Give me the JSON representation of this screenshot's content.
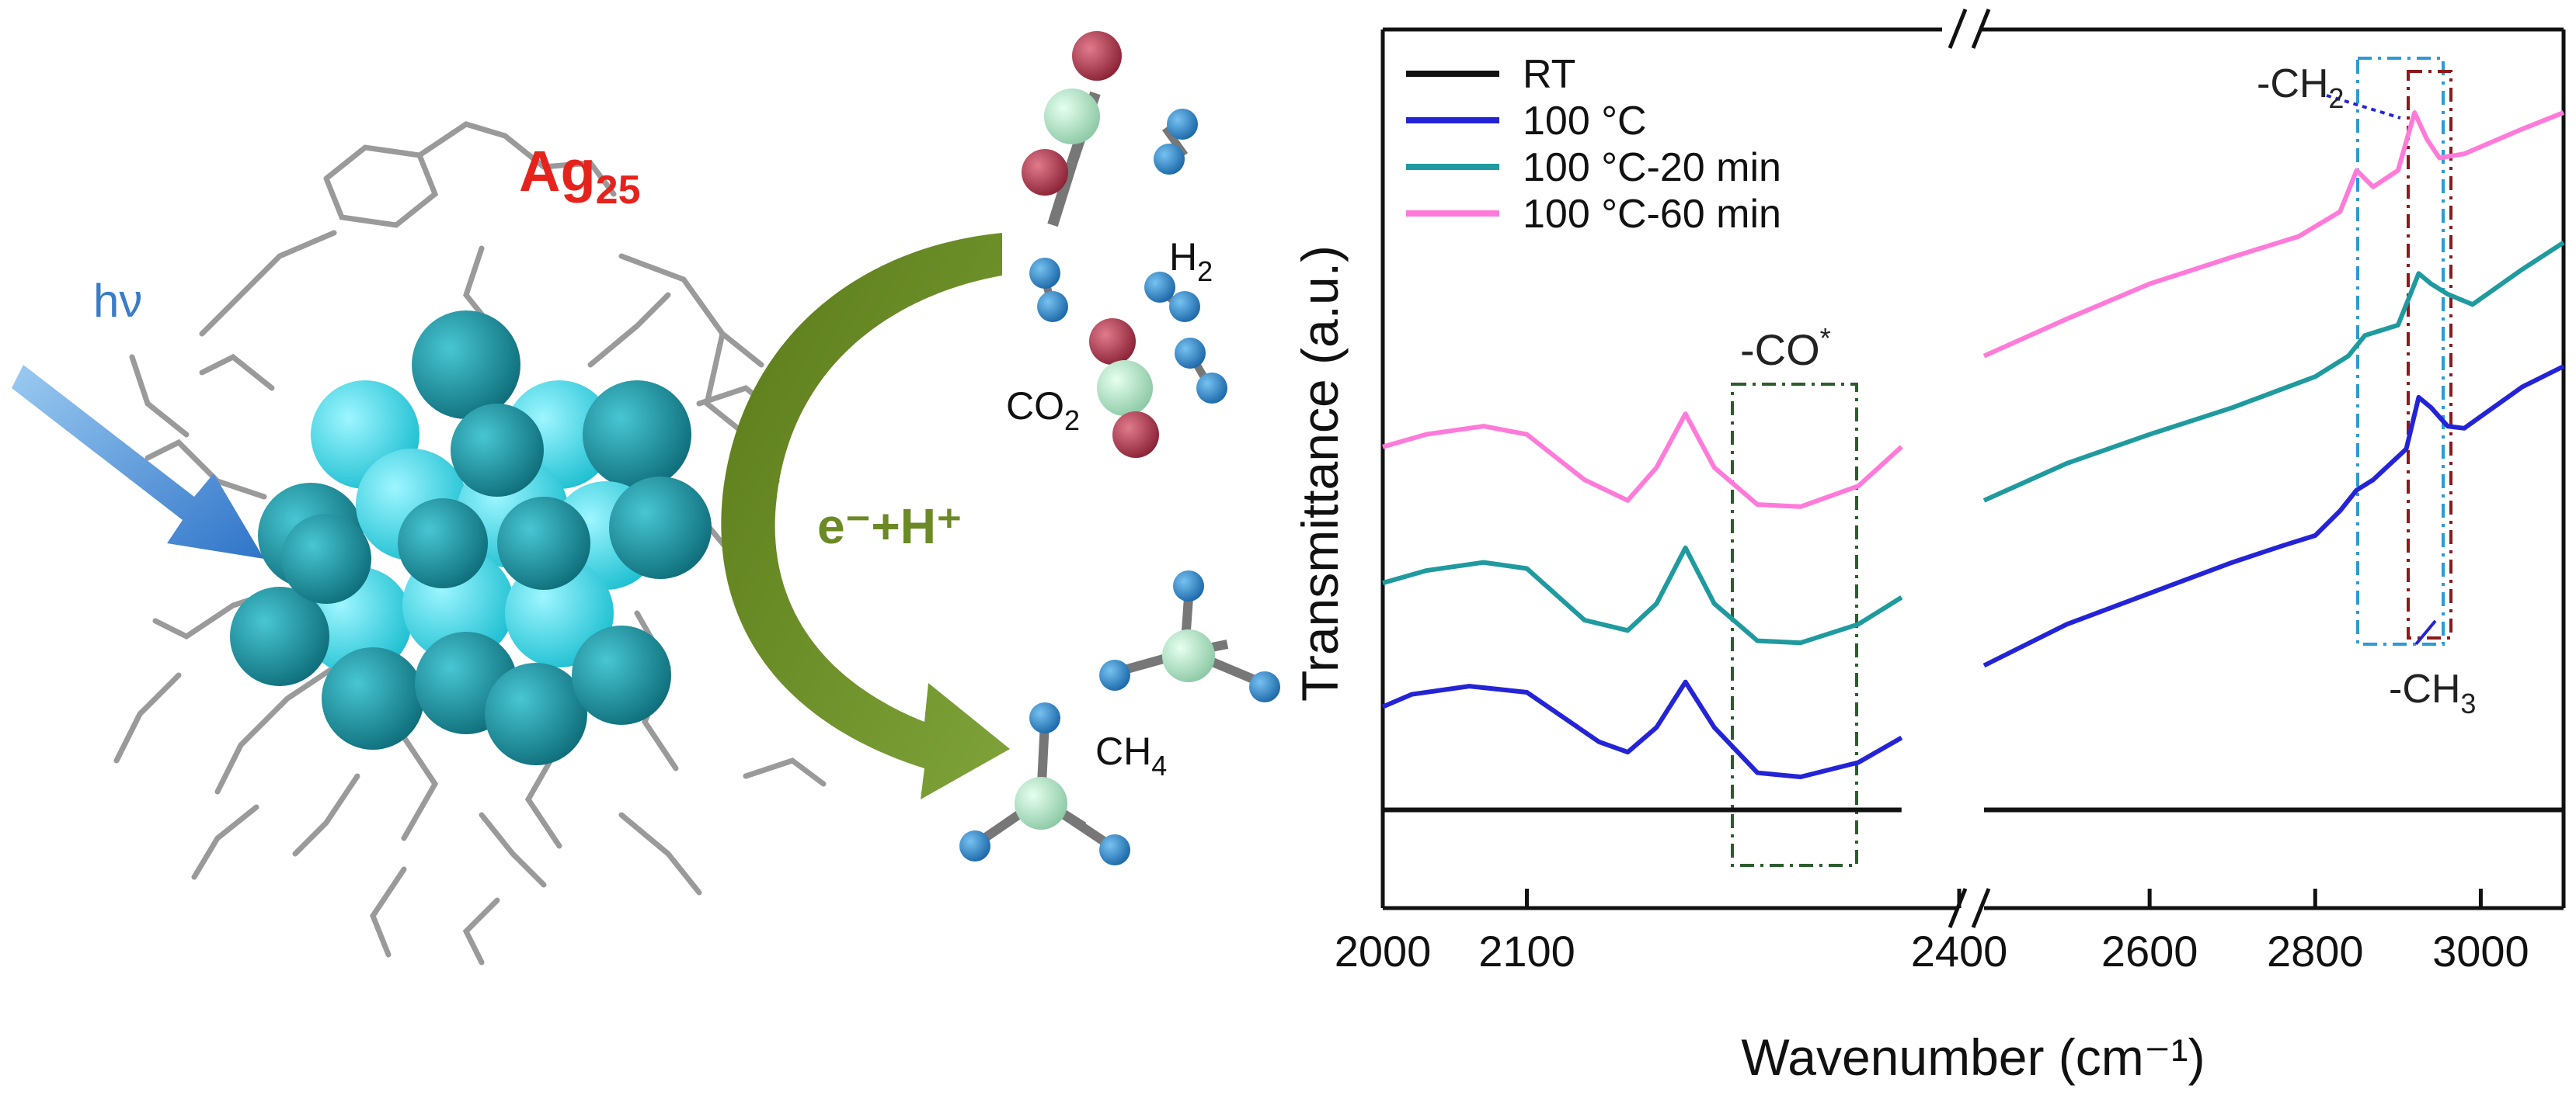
{
  "scheme": {
    "cluster_label": "Ag",
    "cluster_label_sub": "25",
    "light_label": "hν",
    "reaction_label": "e⁻+H⁺",
    "molecule_labels": [
      {
        "text": "H",
        "sub": "2"
      },
      {
        "text": "CO",
        "sub": "2"
      },
      {
        "text": "CH",
        "sub": "4"
      }
    ],
    "colors": {
      "ag_atom": "#2aa7b6",
      "ag_atom_light": "#42e0ef",
      "ligand": "#9a9a9a",
      "arrow_green": "#6b8a25",
      "light_arrow": "#3f8fd6",
      "cluster_label": "#e5231c",
      "oxygen": "#b8465a",
      "carbon": "#b7e4c7",
      "hydrogen": "#2f8fcf"
    },
    "icons": [
      "silver-cluster-icon",
      "light-arrow-icon",
      "co2-molecule-icon",
      "h2-molecule-icon",
      "ch4-molecule-icon",
      "curved-arrow-icon"
    ]
  },
  "chart_data": {
    "type": "line",
    "xlabel": "Wavenumber (cm⁻¹)",
    "ylabel": "Transmittance (a.u.)",
    "x_axis_break": [
      2400,
      2400
    ],
    "left_panel": {
      "xlim": [
        2000,
        2400
      ],
      "ticks": [
        2000,
        2100,
        2400
      ],
      "tick_labels": [
        "2000",
        "2100",
        "2400"
      ]
    },
    "right_panel": {
      "xlim": [
        2400,
        3100
      ],
      "ticks": [
        2600,
        2800,
        3000
      ],
      "tick_labels": [
        "2600",
        "2800",
        "3000"
      ]
    },
    "series": [
      {
        "name": "RT",
        "color": "#111111",
        "left_points": [
          [
            2000,
            0.0
          ],
          [
            2050,
            0.0
          ],
          [
            2100,
            0.0
          ],
          [
            2150,
            0.0
          ],
          [
            2200,
            0.0
          ],
          [
            2250,
            0.0
          ],
          [
            2300,
            0.0
          ],
          [
            2360,
            0.0
          ]
        ],
        "right_points": [
          [
            2400,
            0.0
          ],
          [
            2500,
            0.0
          ],
          [
            2600,
            0.0
          ],
          [
            2700,
            0.0
          ],
          [
            2800,
            0.0
          ],
          [
            2900,
            0.0
          ],
          [
            3000,
            0.0
          ],
          [
            3100,
            0.0
          ]
        ]
      },
      {
        "name": "100 °C",
        "color": "#2424d6",
        "left_points": [
          [
            2000,
            0.5
          ],
          [
            2020,
            0.56
          ],
          [
            2060,
            0.6
          ],
          [
            2100,
            0.57
          ],
          [
            2150,
            0.33
          ],
          [
            2170,
            0.28
          ],
          [
            2190,
            0.4
          ],
          [
            2210,
            0.62
          ],
          [
            2230,
            0.4
          ],
          [
            2260,
            0.18
          ],
          [
            2290,
            0.16
          ],
          [
            2330,
            0.23
          ],
          [
            2360,
            0.35
          ]
        ],
        "right_points": [
          [
            2400,
            0.7
          ],
          [
            2500,
            0.9
          ],
          [
            2600,
            1.05
          ],
          [
            2700,
            1.2
          ],
          [
            2760,
            1.28
          ],
          [
            2800,
            1.33
          ],
          [
            2830,
            1.45
          ],
          [
            2850,
            1.55
          ],
          [
            2870,
            1.6
          ],
          [
            2910,
            1.75
          ],
          [
            2925,
            2.0
          ],
          [
            2940,
            1.95
          ],
          [
            2960,
            1.86
          ],
          [
            2980,
            1.85
          ],
          [
            3050,
            2.05
          ],
          [
            3100,
            2.15
          ]
        ]
      },
      {
        "name": "100 °C-20 min",
        "color": "#1f9a9f",
        "left_points": [
          [
            2000,
            1.1
          ],
          [
            2030,
            1.16
          ],
          [
            2070,
            1.2
          ],
          [
            2100,
            1.17
          ],
          [
            2140,
            0.92
          ],
          [
            2170,
            0.87
          ],
          [
            2190,
            1.0
          ],
          [
            2210,
            1.27
          ],
          [
            2230,
            1.0
          ],
          [
            2260,
            0.82
          ],
          [
            2290,
            0.81
          ],
          [
            2330,
            0.9
          ],
          [
            2360,
            1.03
          ]
        ],
        "right_points": [
          [
            2400,
            1.5
          ],
          [
            2500,
            1.68
          ],
          [
            2600,
            1.82
          ],
          [
            2700,
            1.95
          ],
          [
            2800,
            2.1
          ],
          [
            2840,
            2.2
          ],
          [
            2860,
            2.3
          ],
          [
            2900,
            2.35
          ],
          [
            2925,
            2.6
          ],
          [
            2940,
            2.55
          ],
          [
            2960,
            2.5
          ],
          [
            2990,
            2.45
          ],
          [
            3050,
            2.62
          ],
          [
            3100,
            2.75
          ]
        ]
      },
      {
        "name": "100 °C-60 min",
        "color": "#ff7ad9",
        "left_points": [
          [
            2000,
            1.76
          ],
          [
            2030,
            1.82
          ],
          [
            2070,
            1.86
          ],
          [
            2100,
            1.82
          ],
          [
            2140,
            1.6
          ],
          [
            2170,
            1.5
          ],
          [
            2190,
            1.66
          ],
          [
            2210,
            1.92
          ],
          [
            2230,
            1.66
          ],
          [
            2260,
            1.48
          ],
          [
            2290,
            1.47
          ],
          [
            2330,
            1.57
          ],
          [
            2360,
            1.76
          ]
        ],
        "right_points": [
          [
            2400,
            2.2
          ],
          [
            2500,
            2.38
          ],
          [
            2600,
            2.55
          ],
          [
            2700,
            2.68
          ],
          [
            2780,
            2.78
          ],
          [
            2830,
            2.9
          ],
          [
            2850,
            3.1
          ],
          [
            2870,
            3.02
          ],
          [
            2900,
            3.1
          ],
          [
            2920,
            3.38
          ],
          [
            2935,
            3.25
          ],
          [
            2950,
            3.16
          ],
          [
            2980,
            3.18
          ],
          [
            3050,
            3.3
          ],
          [
            3100,
            3.38
          ]
        ]
      }
    ],
    "ylim": [
      -0.25,
      3.7
    ],
    "annotations": [
      {
        "text": "-CO",
        "sup": "*"
      },
      {
        "text": "-CH",
        "sub": "2"
      },
      {
        "text": "-CH",
        "sub": "3"
      }
    ],
    "grid": false,
    "legend_position": "top-left"
  }
}
